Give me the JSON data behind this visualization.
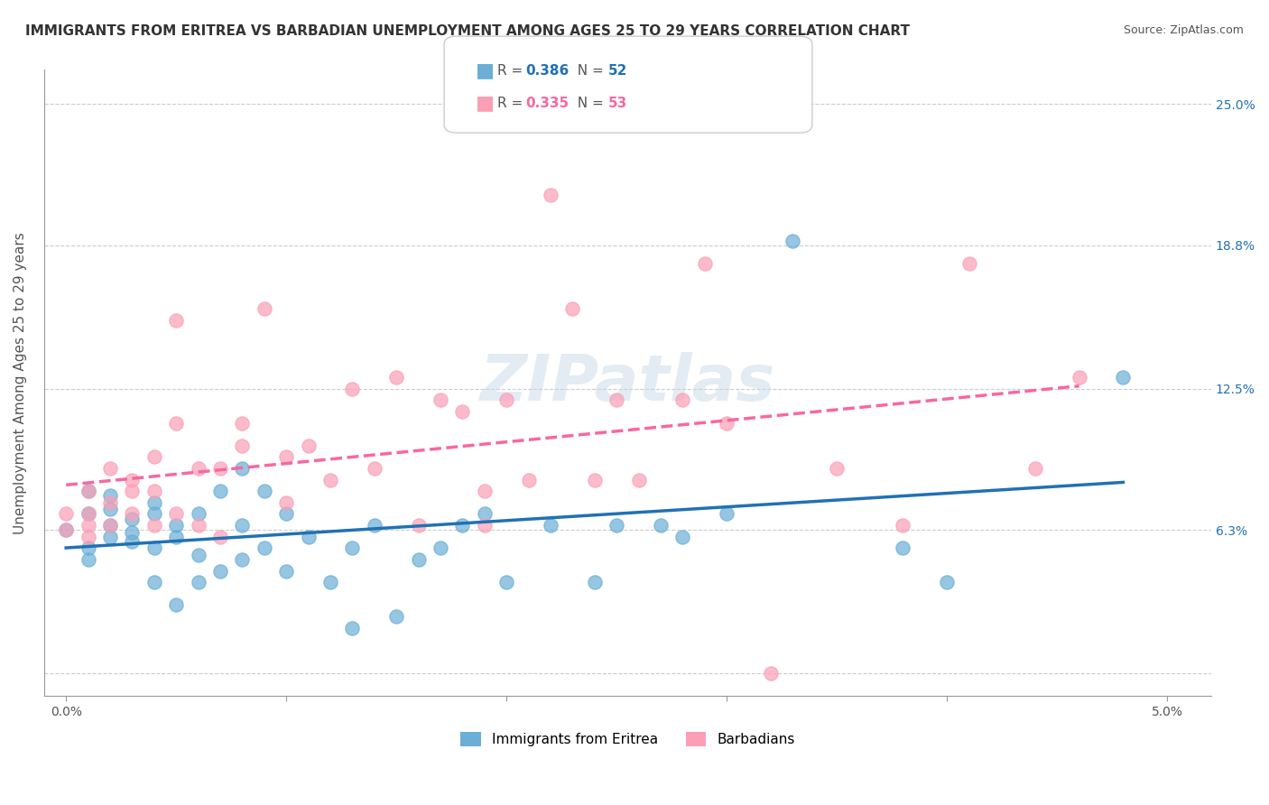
{
  "title": "IMMIGRANTS FROM ERITREA VS BARBADIAN UNEMPLOYMENT AMONG AGES 25 TO 29 YEARS CORRELATION CHART",
  "source": "Source: ZipAtlas.com",
  "xlabel": "",
  "ylabel": "Unemployment Among Ages 25 to 29 years",
  "legend_label_1": "Immigrants from Eritrea",
  "legend_label_2": "Barbadians",
  "r1": 0.386,
  "n1": 52,
  "r2": 0.335,
  "n2": 53,
  "color1": "#6baed6",
  "color2": "#fa9fb5",
  "trendline1_color": "#2171b5",
  "trendline2_color": "#f768a1",
  "x_ticks": [
    0.0,
    0.01,
    0.02,
    0.03,
    0.04,
    0.05
  ],
  "x_tick_labels": [
    "0.0%",
    "",
    "",
    "",
    "",
    "5.0%"
  ],
  "y_ticks": [
    0.0,
    0.063,
    0.125,
    0.188,
    0.25
  ],
  "y_tick_labels": [
    "",
    "6.3%",
    "12.5%",
    "18.8%",
    "25.0%"
  ],
  "xlim": [
    -0.001,
    0.052
  ],
  "ylim": [
    -0.01,
    0.265
  ],
  "watermark": "ZIPatlas",
  "scatter1_x": [
    0.0,
    0.001,
    0.001,
    0.001,
    0.001,
    0.002,
    0.002,
    0.002,
    0.002,
    0.003,
    0.003,
    0.003,
    0.004,
    0.004,
    0.004,
    0.004,
    0.005,
    0.005,
    0.005,
    0.006,
    0.006,
    0.006,
    0.007,
    0.007,
    0.008,
    0.008,
    0.008,
    0.009,
    0.009,
    0.01,
    0.01,
    0.011,
    0.012,
    0.013,
    0.013,
    0.014,
    0.015,
    0.016,
    0.017,
    0.018,
    0.019,
    0.02,
    0.022,
    0.024,
    0.025,
    0.027,
    0.028,
    0.03,
    0.033,
    0.038,
    0.04,
    0.048
  ],
  "scatter1_y": [
    0.063,
    0.05,
    0.055,
    0.07,
    0.08,
    0.06,
    0.065,
    0.072,
    0.078,
    0.058,
    0.062,
    0.068,
    0.04,
    0.055,
    0.07,
    0.075,
    0.03,
    0.06,
    0.065,
    0.04,
    0.052,
    0.07,
    0.045,
    0.08,
    0.05,
    0.065,
    0.09,
    0.055,
    0.08,
    0.045,
    0.07,
    0.06,
    0.04,
    0.02,
    0.055,
    0.065,
    0.025,
    0.05,
    0.055,
    0.065,
    0.07,
    0.04,
    0.065,
    0.04,
    0.065,
    0.065,
    0.06,
    0.07,
    0.19,
    0.055,
    0.04,
    0.13
  ],
  "scatter2_x": [
    0.0,
    0.0,
    0.001,
    0.001,
    0.001,
    0.001,
    0.002,
    0.002,
    0.002,
    0.003,
    0.003,
    0.003,
    0.004,
    0.004,
    0.004,
    0.005,
    0.005,
    0.005,
    0.006,
    0.006,
    0.007,
    0.007,
    0.008,
    0.008,
    0.009,
    0.01,
    0.01,
    0.011,
    0.012,
    0.013,
    0.014,
    0.015,
    0.016,
    0.017,
    0.018,
    0.019,
    0.019,
    0.02,
    0.021,
    0.022,
    0.023,
    0.024,
    0.025,
    0.026,
    0.028,
    0.029,
    0.03,
    0.032,
    0.035,
    0.038,
    0.041,
    0.044,
    0.046
  ],
  "scatter2_y": [
    0.063,
    0.07,
    0.06,
    0.065,
    0.07,
    0.08,
    0.065,
    0.075,
    0.09,
    0.07,
    0.08,
    0.085,
    0.065,
    0.08,
    0.095,
    0.07,
    0.11,
    0.155,
    0.065,
    0.09,
    0.06,
    0.09,
    0.1,
    0.11,
    0.16,
    0.075,
    0.095,
    0.1,
    0.085,
    0.125,
    0.09,
    0.13,
    0.065,
    0.12,
    0.115,
    0.065,
    0.08,
    0.12,
    0.085,
    0.21,
    0.16,
    0.085,
    0.12,
    0.085,
    0.12,
    0.18,
    0.11,
    0.0,
    0.09,
    0.065,
    0.18,
    0.09,
    0.13
  ]
}
